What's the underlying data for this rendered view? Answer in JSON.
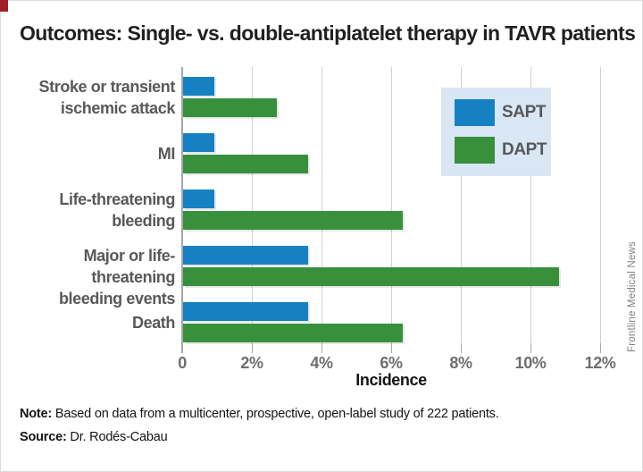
{
  "title": "Outcomes: Single- vs. double-antiplatelet therapy in TAVR patients",
  "watermark": "Frontline Medical News",
  "note": {
    "label": "Note:",
    "text": " Based on data from a multicenter, prospective, open-label study of 222 patients."
  },
  "source": {
    "label": "Source:",
    "text": " Dr. Rodés-Cabau"
  },
  "colors": {
    "sapt_blue": "#1581c3",
    "dapt_green": "#38903c",
    "legend_bg": "#d9e6f4",
    "accent_red": "#a11e22",
    "gridline": "#cfd0d1",
    "label_gray": "#58595b"
  },
  "chart_data": {
    "type": "bar",
    "orientation": "horizontal",
    "title": "Outcomes: Single- vs. double-antiplatelet therapy in TAVR patients",
    "categories": [
      "Stroke or transient ischemic attack",
      "MI",
      "Life-threatening bleeding",
      "Major or life-threatening bleeding events",
      "Death"
    ],
    "category_display_lines": [
      [
        "Stroke or transient",
        "ischemic attack"
      ],
      [
        "MI"
      ],
      [
        "Life-threatening",
        "bleeding"
      ],
      [
        "Major or life-threatening",
        "bleeding events"
      ],
      [
        "Death"
      ]
    ],
    "series": [
      {
        "name": "SAPT",
        "color": "#1581c3",
        "values": [
          0.9,
          0.9,
          0.9,
          3.6,
          3.6
        ]
      },
      {
        "name": "DAPT",
        "color": "#38903c",
        "values": [
          2.7,
          3.6,
          6.3,
          10.8,
          6.3
        ]
      }
    ],
    "xlabel": "Incidence",
    "xlim": [
      0,
      12
    ],
    "xticks": [
      "0",
      "2%",
      "4%",
      "6%",
      "8%",
      "10%",
      "12%"
    ],
    "grid": "vertical",
    "legend_position": "top-right"
  }
}
